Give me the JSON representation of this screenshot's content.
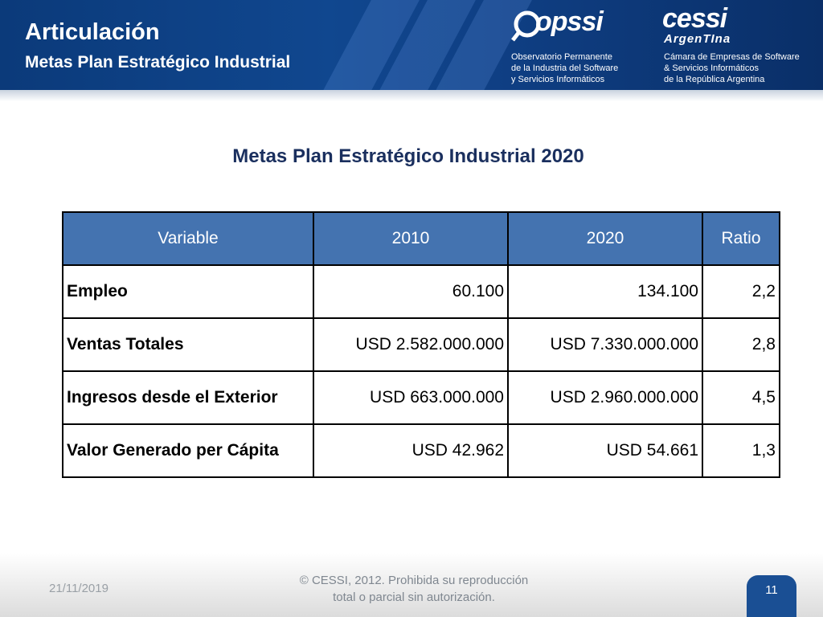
{
  "header": {
    "title": "Articulación",
    "subtitle": "Metas Plan Estratégico Industrial",
    "logo_opssi": "opssi",
    "opssi_desc": [
      "Observatorio Permanente",
      "de la Industria del Software",
      "y Servicios Informáticos"
    ],
    "logo_cessi": "cessi",
    "logo_cessi_sub": "ArgenTIna",
    "cessi_desc": [
      "Cámara de Empresas de Software",
      "& Servicios Informáticos",
      "de la República Argentina"
    ]
  },
  "main": {
    "title": "Metas Plan Estratégico Industrial 2020",
    "table": {
      "headers": [
        "Variable",
        "2010",
        "2020",
        "Ratio"
      ],
      "rows": [
        [
          "Empleo",
          "60.100",
          "134.100",
          "2,2"
        ],
        [
          "Ventas Totales",
          "USD 2.582.000.000",
          "USD 7.330.000.000",
          "2,8"
        ],
        [
          "Ingresos desde el Exterior",
          "USD 663.000.000",
          "USD 2.960.000.000",
          "4,5"
        ],
        [
          "Valor Generado per Cápita",
          "USD 42.962",
          "USD 54.661",
          "1,3"
        ]
      ]
    }
  },
  "footer": {
    "date": "21/11/2019",
    "copyright_line1": "© CESSI, 2012. Prohibida su reproducción",
    "copyright_line2": "total o parcial sin autorización.",
    "page_number": "11"
  },
  "colors": {
    "header_blue": "#10478f",
    "table_header": "#4473b0",
    "title_navy": "#1a2f5e"
  }
}
